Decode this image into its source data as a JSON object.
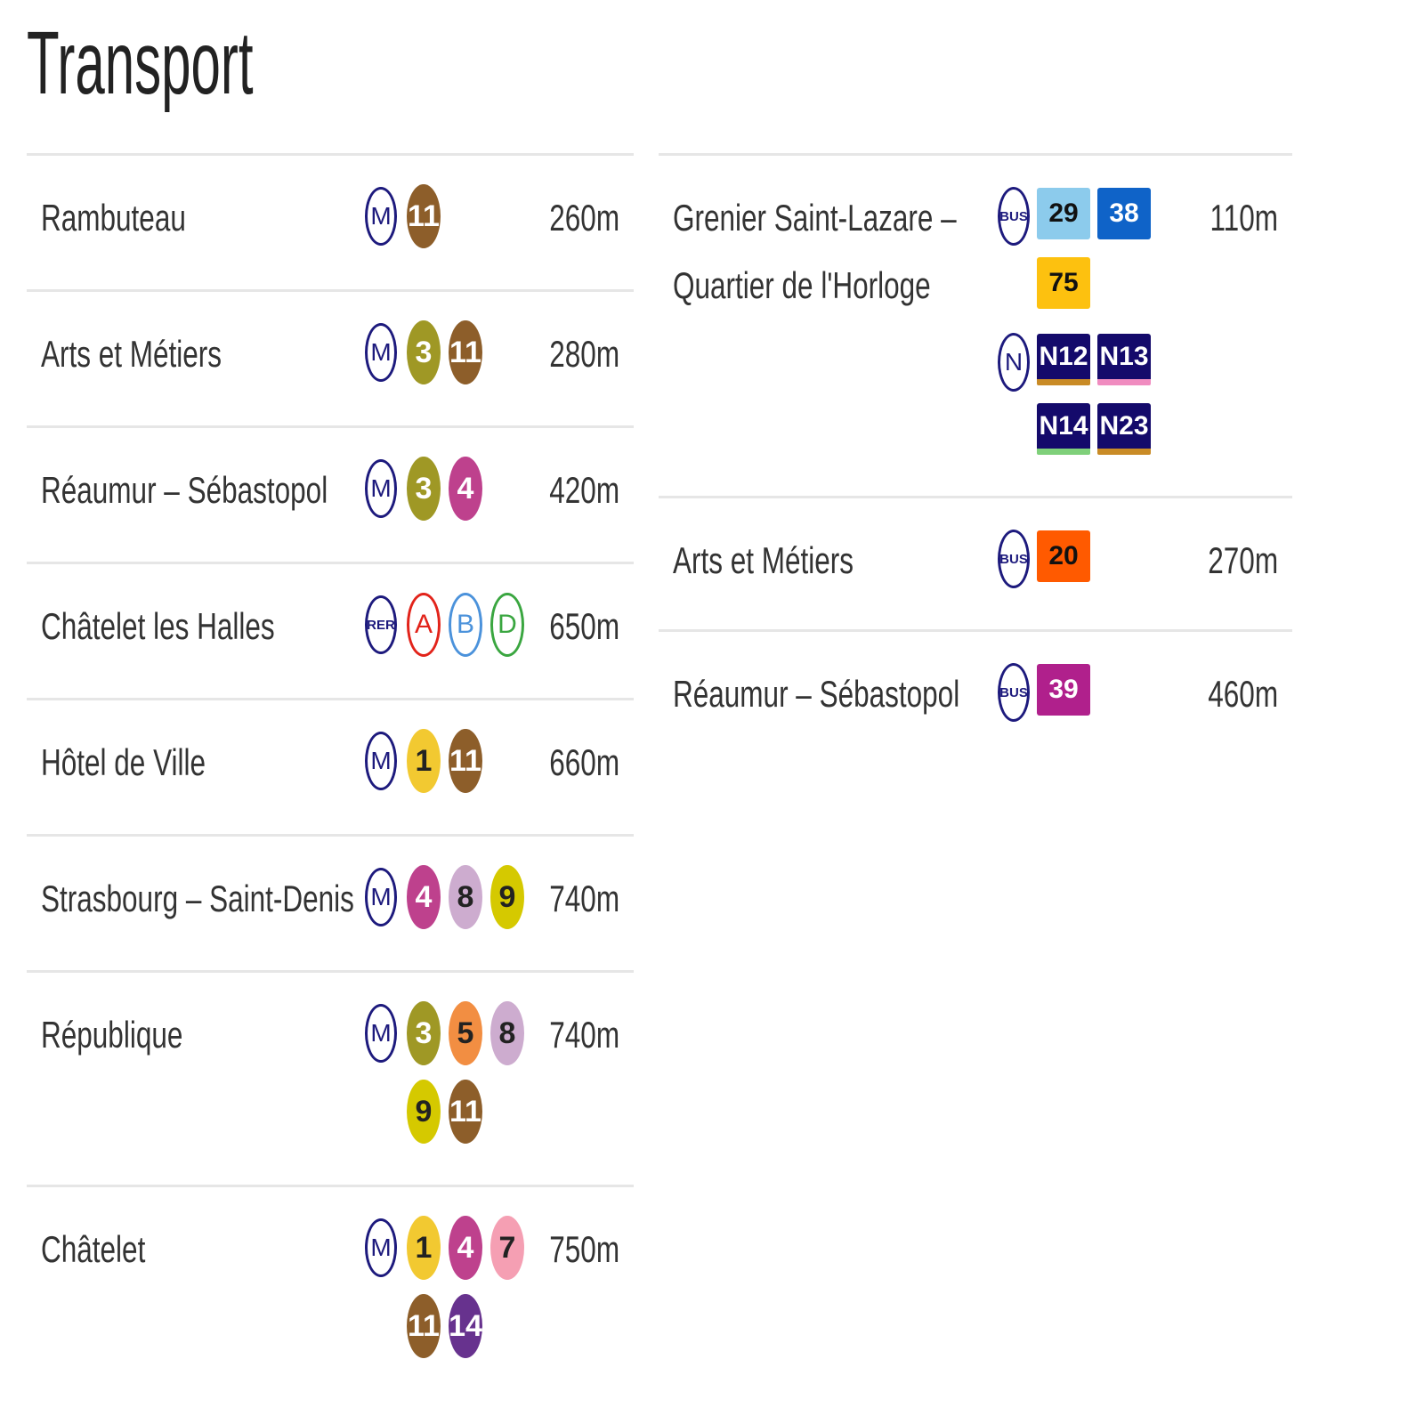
{
  "title": "Transport",
  "metro_stations": [
    {
      "name": [
        "Rambuteau"
      ],
      "mode": "M",
      "lines": [
        {
          "label": "11",
          "bg": "#8d5e2a",
          "fg": "#fff"
        }
      ],
      "distance": "260m"
    },
    {
      "name": [
        "Arts et Métiers"
      ],
      "mode": "M",
      "lines": [
        {
          "label": "3",
          "bg": "#9f9825",
          "fg": "#fff"
        },
        {
          "label": "11",
          "bg": "#8d5e2a",
          "fg": "#fff"
        }
      ],
      "distance": "280m"
    },
    {
      "name": [
        "Réaumur – Sébastopol"
      ],
      "mode": "M",
      "lines": [
        {
          "label": "3",
          "bg": "#9f9825",
          "fg": "#fff"
        },
        {
          "label": "4",
          "bg": "#be418d",
          "fg": "#fff"
        }
      ],
      "distance": "420m"
    },
    {
      "name": [
        "Châtelet les Halles"
      ],
      "mode": "RER",
      "lines": [
        {
          "label": "A",
          "rer": "#e2231a"
        },
        {
          "label": "B",
          "rer": "#4b92db"
        },
        {
          "label": "D",
          "rer": "#3aa640"
        }
      ],
      "distance": "650m"
    },
    {
      "name": [
        "Hôtel de Ville"
      ],
      "mode": "M",
      "lines": [
        {
          "label": "1",
          "bg": "#f2c931",
          "fg": "#222"
        },
        {
          "label": "11",
          "bg": "#8d5e2a",
          "fg": "#fff"
        }
      ],
      "distance": "660m"
    },
    {
      "name": [
        "Strasbourg – Saint-Denis"
      ],
      "mode": "M",
      "lines": [
        {
          "label": "4",
          "bg": "#be418d",
          "fg": "#fff"
        },
        {
          "label": "8",
          "bg": "#cdaccf",
          "fg": "#222"
        },
        {
          "label": "9",
          "bg": "#d5c900",
          "fg": "#222"
        }
      ],
      "distance": "740m"
    },
    {
      "name": [
        "République"
      ],
      "mode": "M",
      "lines": [
        {
          "label": "3",
          "bg": "#9f9825",
          "fg": "#fff"
        },
        {
          "label": "5",
          "bg": "#f28e42",
          "fg": "#222"
        },
        {
          "label": "8",
          "bg": "#cdaccf",
          "fg": "#222"
        },
        {
          "label": "9",
          "bg": "#d5c900",
          "fg": "#222"
        },
        {
          "label": "11",
          "bg": "#8d5e2a",
          "fg": "#fff"
        }
      ],
      "distance": "740m"
    },
    {
      "name": [
        "Châtelet"
      ],
      "mode": "M",
      "lines": [
        {
          "label": "1",
          "bg": "#f2c931",
          "fg": "#222"
        },
        {
          "label": "4",
          "bg": "#be418d",
          "fg": "#fff"
        },
        {
          "label": "7",
          "bg": "#f59fb3",
          "fg": "#222"
        },
        {
          "label": "11",
          "bg": "#8d5e2a",
          "fg": "#fff"
        },
        {
          "label": "14",
          "bg": "#67328e",
          "fg": "#fff"
        }
      ],
      "distance": "750m"
    }
  ],
  "bus_stops": [
    {
      "name": [
        "Grenier Saint-Lazare –",
        "Quartier de l'Horloge"
      ],
      "groups": [
        {
          "mode": "BUS",
          "lines": [
            {
              "label": "29",
              "bg": "#8ccbec",
              "fg": "#111"
            },
            {
              "label": "38",
              "bg": "#0f63c8",
              "fg": "#fff"
            },
            {
              "label": "75",
              "bg": "#fdc10f",
              "fg": "#111"
            }
          ]
        },
        {
          "mode": "N",
          "lines": [
            {
              "label": "N12",
              "bg": "#140a6b",
              "fg": "#fff",
              "bar": "#c98b26"
            },
            {
              "label": "N13",
              "bg": "#140a6b",
              "fg": "#fff",
              "bar": "#f08cc0"
            },
            {
              "label": "N14",
              "bg": "#140a6b",
              "fg": "#fff",
              "bar": "#7fd07a"
            },
            {
              "label": "N23",
              "bg": "#140a6b",
              "fg": "#fff",
              "bar": "#c98b26"
            }
          ]
        }
      ],
      "distance": "110m"
    },
    {
      "name": [
        "Arts et Métiers"
      ],
      "groups": [
        {
          "mode": "BUS",
          "lines": [
            {
              "label": "20",
              "bg": "#ff5a00",
              "fg": "#111"
            }
          ]
        }
      ],
      "distance": "270m"
    },
    {
      "name": [
        "Réaumur – Sébastopol"
      ],
      "groups": [
        {
          "mode": "BUS",
          "lines": [
            {
              "label": "39",
              "bg": "#b0208c",
              "fg": "#fff"
            }
          ]
        }
      ],
      "distance": "460m"
    }
  ]
}
